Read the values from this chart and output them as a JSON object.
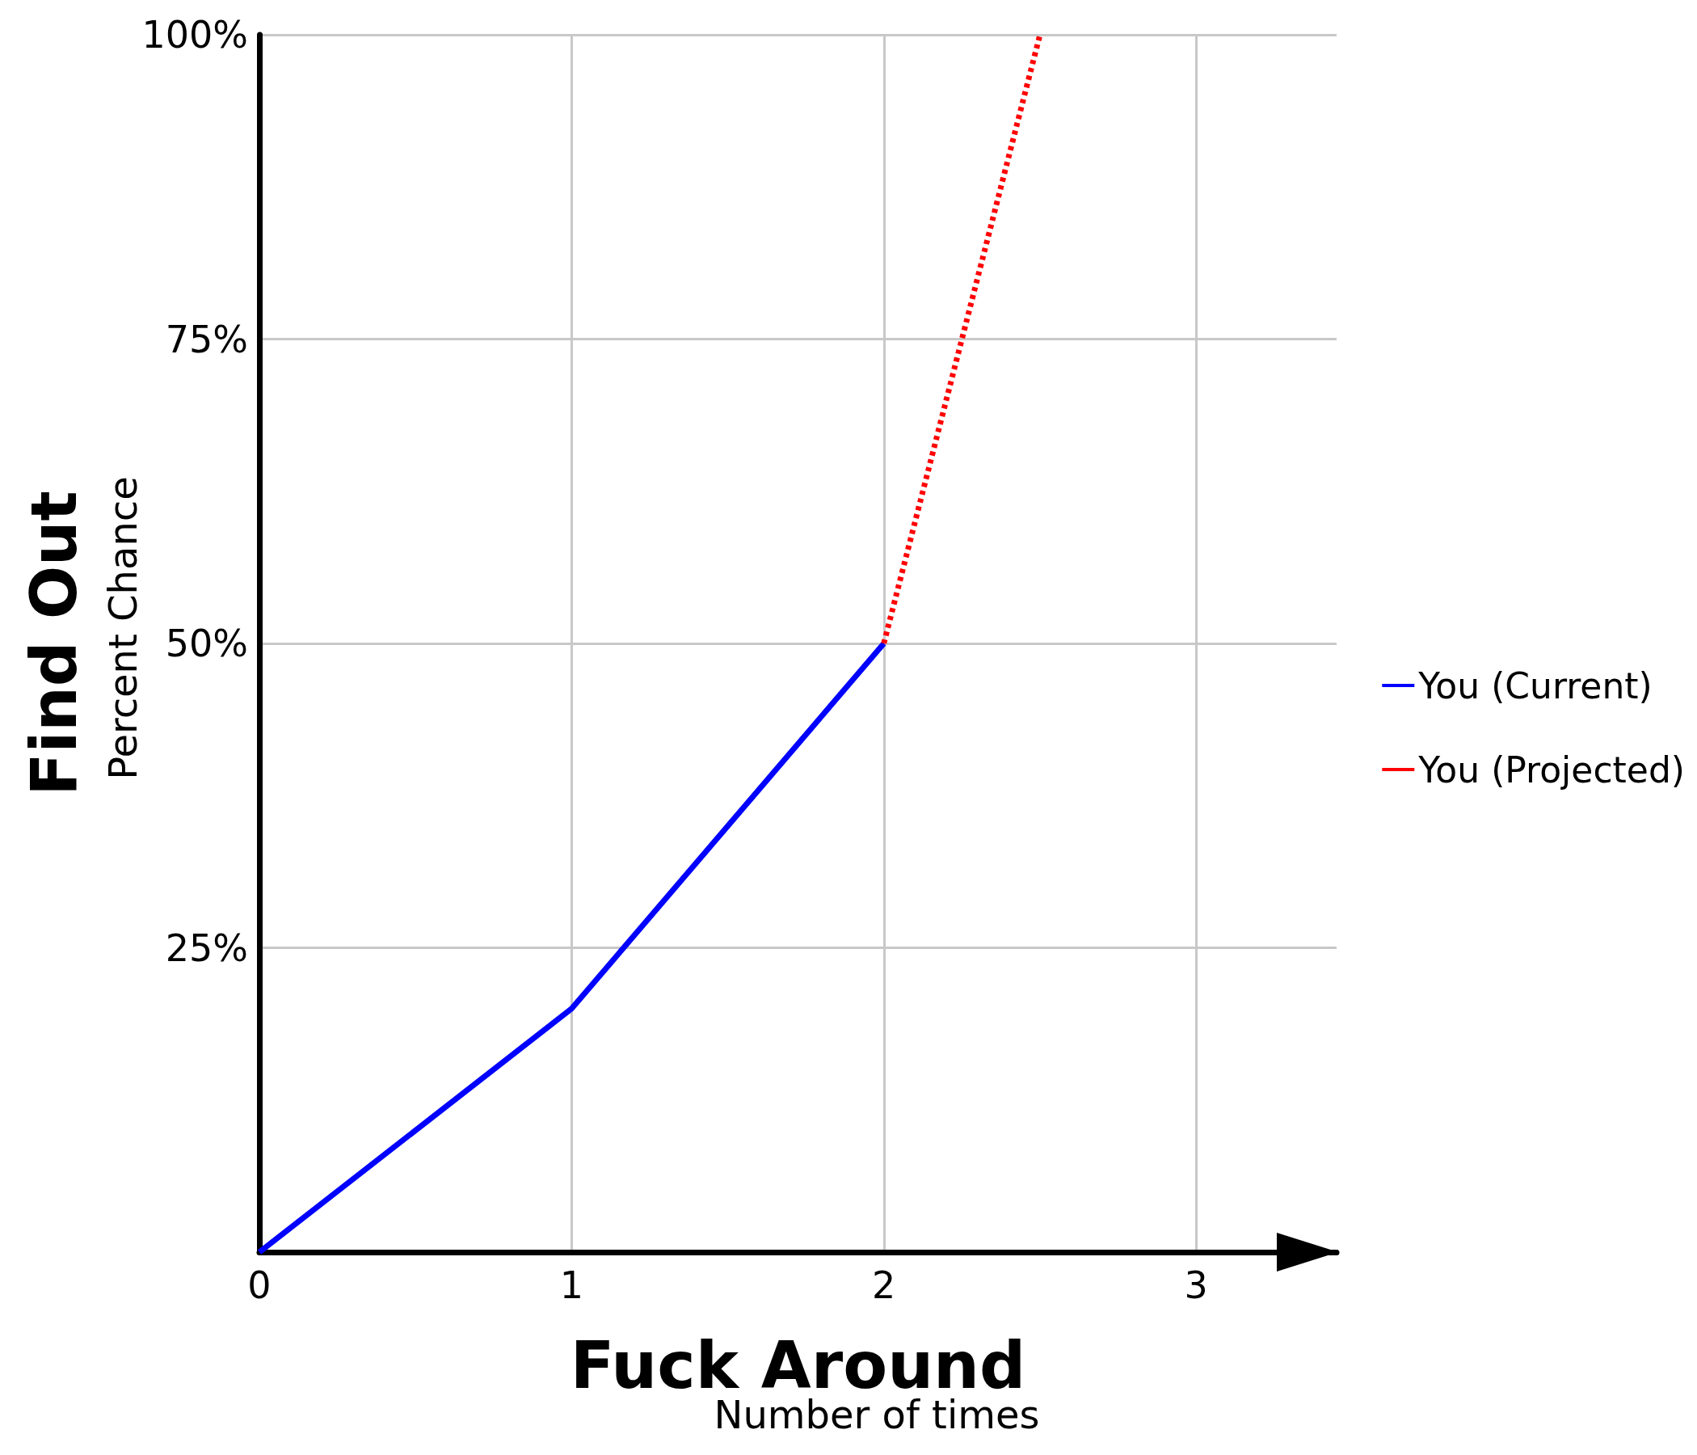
{
  "chart_data": {
    "type": "line",
    "xlabel": "Fuck Around",
    "ylabel": "Find Out",
    "annotations": [
      "Number of times",
      "Percent Chance"
    ],
    "xlim": [
      0,
      3.45
    ],
    "xticks": [
      0,
      1,
      2,
      3
    ],
    "ylim": [
      0,
      100
    ],
    "yticks": [
      {
        "value": 0,
        "label": null
      },
      {
        "value": 25,
        "label": "25%"
      },
      {
        "value": 50,
        "label": "50%"
      },
      {
        "value": 75,
        "label": "75%"
      },
      {
        "value": 100,
        "label": "100%"
      }
    ],
    "series": [
      {
        "name": "You (Current)",
        "color": "#0000ff",
        "x": [
          0,
          1,
          2
        ],
        "values": [
          0,
          20,
          50
        ],
        "line_style": "solid"
      },
      {
        "name": "You (Projected)",
        "color": "#ff0000",
        "x": [
          2,
          2.5
        ],
        "values": [
          50,
          100
        ],
        "line_style": "dotted"
      }
    ],
    "grid": true,
    "legend": "right",
    "marker": "none"
  }
}
